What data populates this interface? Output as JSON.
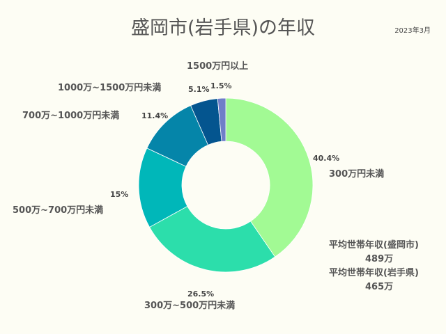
{
  "chart_data": {
    "type": "pie",
    "title": "盛岡市(岩手県)の年収",
    "note": "2023年3月",
    "categories": [
      "300万円未満",
      "300万~500万円未満",
      "500万~700万円未満",
      "700万~1000万円未満",
      "1000万~1500万円未満",
      "1500万円以上"
    ],
    "values": [
      40.4,
      26.5,
      15,
      11.4,
      5.1,
      1.5
    ],
    "value_labels": [
      "40.4%",
      "26.5%",
      "15%",
      "11.4%",
      "5.1%",
      "1.5%"
    ],
    "colors": [
      "#a2fa94",
      "#2cdeab",
      "#00b7b9",
      "#0585a9",
      "#04558f",
      "#6f7ec8"
    ],
    "donut": true
  },
  "summary": {
    "city_label": "平均世帯年収(盛岡市)",
    "city_value": "489万",
    "pref_label": "平均世帯年収(岩手県)",
    "pref_value": "465万"
  }
}
